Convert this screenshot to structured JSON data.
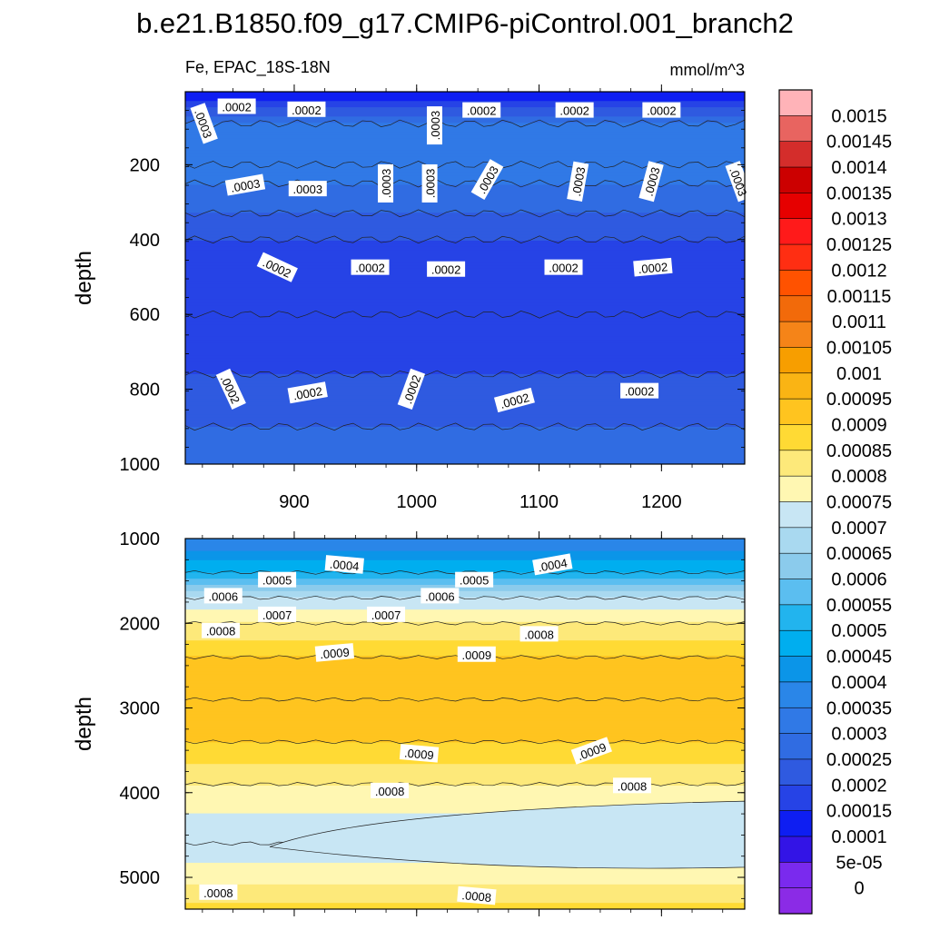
{
  "title": "b.e21.B1850.f09_g17.CMIP6-piControl.001_branch2",
  "left_subtitle": "Fe, EPAC_18S-18N",
  "right_subtitle": "mmol/m^3",
  "colorbar": {
    "labels": [
      "0.0015",
      "0.00145",
      "0.0014",
      "0.00135",
      "0.0013",
      "0.00125",
      "0.0012",
      "0.00115",
      "0.0011",
      "0.00105",
      "0.001",
      "0.00095",
      "0.0009",
      "0.00085",
      "0.0008",
      "0.00075",
      "0.0007",
      "0.00065",
      "0.0006",
      "0.00055",
      "0.0005",
      "0.00045",
      "0.0004",
      "0.00035",
      "0.0003",
      "0.00025",
      "0.0002",
      "0.00015",
      "0.0001",
      "5e-05",
      "0"
    ],
    "colors": [
      "#FFB3B8",
      "#E86460",
      "#D42D2B",
      "#CC0000",
      "#E60000",
      "#FF1A1A",
      "#FF2E12",
      "#FF5200",
      "#F26A0A",
      "#F58418",
      "#F79E00",
      "#FAB414",
      "#FFC41F",
      "#FFDA34",
      "#FDE97A",
      "#FFF7B2",
      "#C8E6F4",
      "#A9D9F0",
      "#8BCBEC",
      "#5BBEF0",
      "#22B4EE",
      "#00AEEF",
      "#0B95E8",
      "#2A86E8",
      "#3079E6",
      "#306CE2",
      "#2F5AE0",
      "#2643E6",
      "#0E1EF2",
      "#3314E6",
      "#7A2AEE",
      "#8B2BE6"
    ]
  },
  "chart_data": [
    {
      "type": "contour",
      "panel": "upper",
      "ylabel": "depth",
      "xlabel": "",
      "x_ticks": [
        900,
        1000,
        1100,
        1200
      ],
      "y_ticks": [
        200,
        400,
        600,
        800,
        1000
      ],
      "xlim": [
        811,
        1268
      ],
      "ylim": [
        1000,
        5
      ],
      "y_reversed": true,
      "levels": [
        {
          "depth": 5,
          "fe": 0.0001
        },
        {
          "depth": 90,
          "fe": 0.0003
        },
        {
          "depth": 200,
          "fe": 0.00035
        },
        {
          "depth": 250,
          "fe": 0.0003
        },
        {
          "depth": 330,
          "fe": 0.00025
        },
        {
          "depth": 400,
          "fe": 0.0002
        },
        {
          "depth": 600,
          "fe": 0.00015
        },
        {
          "depth": 760,
          "fe": 0.0002
        },
        {
          "depth": 900,
          "fe": 0.00025
        },
        {
          "depth": 1000,
          "fe": 0.00025
        }
      ],
      "contour_labels": [
        {
          "text": ".0003",
          "x": 826,
          "y": 90,
          "rot": 70
        },
        {
          "text": ".0002",
          "x": 853,
          "y": 45,
          "rot": 0
        },
        {
          "text": ".0002",
          "x": 910,
          "y": 53,
          "rot": 0
        },
        {
          "text": ".0003",
          "x": 1015,
          "y": 95,
          "rot": -90
        },
        {
          "text": ".0002",
          "x": 1053,
          "y": 55,
          "rot": 0
        },
        {
          "text": ".0002",
          "x": 1129,
          "y": 55,
          "rot": 0
        },
        {
          "text": ".0002",
          "x": 1200,
          "y": 55,
          "rot": 0
        },
        {
          "text": ".0003",
          "x": 860,
          "y": 255,
          "rot": -10
        },
        {
          "text": ".0003",
          "x": 911,
          "y": 265,
          "rot": 0
        },
        {
          "text": ".0003",
          "x": 975,
          "y": 250,
          "rot": -90
        },
        {
          "text": ".0003",
          "x": 1011,
          "y": 250,
          "rot": -90
        },
        {
          "text": ".0003",
          "x": 1058,
          "y": 240,
          "rot": -60
        },
        {
          "text": ".0003",
          "x": 1132,
          "y": 245,
          "rot": -80
        },
        {
          "text": ".0003",
          "x": 1192,
          "y": 245,
          "rot": -75
        },
        {
          "text": ".0003",
          "x": 1263,
          "y": 245,
          "rot": 70
        },
        {
          "text": ".0002",
          "x": 886,
          "y": 475,
          "rot": 25
        },
        {
          "text": ".0002",
          "x": 962,
          "y": 475,
          "rot": 0
        },
        {
          "text": ".0002",
          "x": 1024,
          "y": 480,
          "rot": 0
        },
        {
          "text": ".0002",
          "x": 1120,
          "y": 475,
          "rot": 0
        },
        {
          "text": ".0002",
          "x": 1193,
          "y": 475,
          "rot": -5
        },
        {
          "text": ".0002",
          "x": 848,
          "y": 800,
          "rot": 65
        },
        {
          "text": ".0002",
          "x": 911,
          "y": 810,
          "rot": -10
        },
        {
          "text": ".0002",
          "x": 996,
          "y": 800,
          "rot": -70
        },
        {
          "text": ".0002",
          "x": 1080,
          "y": 830,
          "rot": -15
        },
        {
          "text": ".0002",
          "x": 1182,
          "y": 805,
          "rot": 0
        }
      ]
    },
    {
      "type": "contour",
      "panel": "lower",
      "ylabel": "depth",
      "xlabel": "",
      "y_ticks": [
        1000,
        2000,
        3000,
        4000,
        5000
      ],
      "xlim": [
        811,
        1268
      ],
      "ylim": [
        5375,
        1000
      ],
      "y_reversed": true,
      "levels": [
        {
          "depth": 1000,
          "fe": 0.00035
        },
        {
          "depth": 1400,
          "fe": 0.0005
        },
        {
          "depth": 1700,
          "fe": 0.0007
        },
        {
          "depth": 2000,
          "fe": 0.0008
        },
        {
          "depth": 2400,
          "fe": 0.0009
        },
        {
          "depth": 2900,
          "fe": 0.00095
        },
        {
          "depth": 3400,
          "fe": 0.0009
        },
        {
          "depth": 3900,
          "fe": 0.0008
        },
        {
          "depth": 4600,
          "fe": 0.0007
        },
        {
          "depth": 5300,
          "fe": 0.00085
        }
      ],
      "contour_labels": [
        {
          "text": ".0004",
          "x": 941,
          "y": 1310,
          "rot": 5
        },
        {
          "text": ".0005",
          "x": 886,
          "y": 1490,
          "rot": 0
        },
        {
          "text": ".0004",
          "x": 1111,
          "y": 1310,
          "rot": -10
        },
        {
          "text": ".0005",
          "x": 1047,
          "y": 1490,
          "rot": 0
        },
        {
          "text": ".0006",
          "x": 842,
          "y": 1680,
          "rot": 0
        },
        {
          "text": ".0006",
          "x": 1019,
          "y": 1680,
          "rot": 0
        },
        {
          "text": ".0007",
          "x": 886,
          "y": 1900,
          "rot": 0
        },
        {
          "text": ".0007",
          "x": 975,
          "y": 1900,
          "rot": 0
        },
        {
          "text": ".0008",
          "x": 840,
          "y": 2090,
          "rot": 0
        },
        {
          "text": ".0008",
          "x": 1100,
          "y": 2130,
          "rot": 0
        },
        {
          "text": ".0009",
          "x": 933,
          "y": 2350,
          "rot": -5
        },
        {
          "text": ".0009",
          "x": 1049,
          "y": 2370,
          "rot": 0
        },
        {
          "text": ".0009",
          "x": 1002,
          "y": 3540,
          "rot": 5
        },
        {
          "text": ".0009",
          "x": 1143,
          "y": 3510,
          "rot": -20
        },
        {
          "text": ".0008",
          "x": 978,
          "y": 3980,
          "rot": 0
        },
        {
          "text": ".0008",
          "x": 1176,
          "y": 3920,
          "rot": 0
        },
        {
          "text": ".0008",
          "x": 838,
          "y": 5180,
          "rot": 0
        },
        {
          "text": ".0008",
          "x": 1049,
          "y": 5220,
          "rot": 5
        }
      ]
    }
  ]
}
